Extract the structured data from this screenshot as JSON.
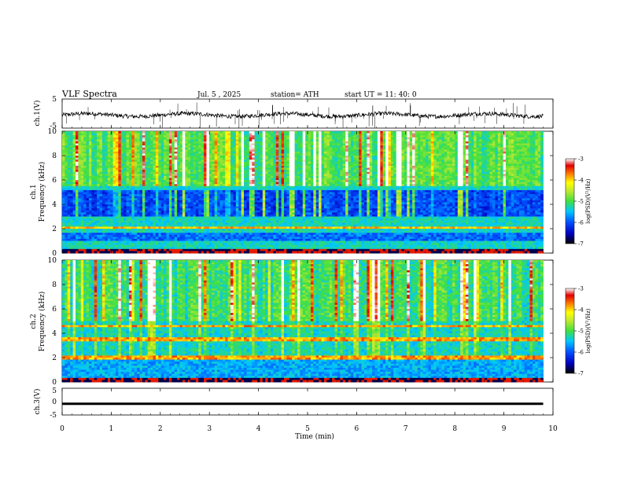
{
  "header": {
    "title": "VLF  Spectra",
    "date": "Jul.  5  , 2025",
    "station": "station= ATH",
    "start": "start  UT  =   11: 40: 0"
  },
  "colors": {
    "colormap": [
      "#000000",
      "#0000c0",
      "#0050ff",
      "#00c8ff",
      "#00e0a0",
      "#40e040",
      "#c0e830",
      "#ffff00",
      "#ff8000",
      "#e00000",
      "#ffffff"
    ],
    "trace": "#000000"
  },
  "chart_data": [
    {
      "type": "line",
      "panel": "ch1-waveform",
      "ylabel": "ch.1(V)",
      "ylim": [
        -5,
        5
      ],
      "y_ticks": [
        "5",
        "-5"
      ],
      "xlim": [
        0,
        10
      ],
      "series": [
        {
          "values_summary": "noisy baseline near -0.5 V with sparse spikes spanning roughly -4 to +4 V",
          "baseline": -0.5
        }
      ]
    },
    {
      "type": "heatmap",
      "panel": "ch1-spectrogram",
      "ylabel": "ch.1\nFrequency  (kHz)",
      "ylim": [
        0,
        10
      ],
      "y_ticks": [
        "0",
        "2",
        "4",
        "6",
        "8",
        "10"
      ],
      "xlim": [
        0,
        9.8
      ],
      "colorbar": {
        "label": "log(PSD)(V²/Hz)",
        "range": [
          -7,
          -3
        ],
        "ticks": [
          "-3",
          "-4",
          "-5",
          "-6",
          "-7"
        ]
      },
      "features": {
        "dark_band_khz": [
          3.0,
          5.2
        ],
        "dark_band_khz_2": [
          1.0,
          1.7
        ],
        "bright_line_khz": 2.1,
        "bursts_upper_band_khz": [
          5.5,
          10
        ]
      }
    },
    {
      "type": "heatmap",
      "panel": "ch2-spectrogram",
      "ylabel": "ch.2\nFrequency  (kHz)",
      "ylim": [
        0,
        10
      ],
      "y_ticks": [
        "0",
        "2",
        "4",
        "6",
        "8",
        "10"
      ],
      "xlim": [
        0,
        9.8
      ],
      "colorbar": {
        "label": "log(PSD)(V²/Hz)",
        "range": [
          -7,
          -3
        ],
        "ticks": [
          "-3",
          "-4",
          "-5",
          "-6",
          "-7"
        ]
      },
      "features": {
        "bright_lines_khz": [
          2.0,
          3.5,
          4.6
        ],
        "bursts_upper_band_khz": [
          5,
          10
        ]
      }
    },
    {
      "type": "line",
      "panel": "ch3-waveform",
      "ylabel": "ch.3(V)",
      "ylim": [
        -5,
        5
      ],
      "y_ticks": [
        "5",
        "0",
        "-5"
      ],
      "xlim": [
        0,
        10
      ],
      "series": [
        {
          "values_summary": "flat thick trace at about -0.8 V",
          "baseline": -0.8
        }
      ]
    }
  ],
  "x_axis": {
    "label": "Time  (min)",
    "range": [
      0,
      10
    ],
    "ticks": [
      "0",
      "1",
      "2",
      "3",
      "4",
      "5",
      "6",
      "7",
      "8",
      "9",
      "10"
    ]
  }
}
